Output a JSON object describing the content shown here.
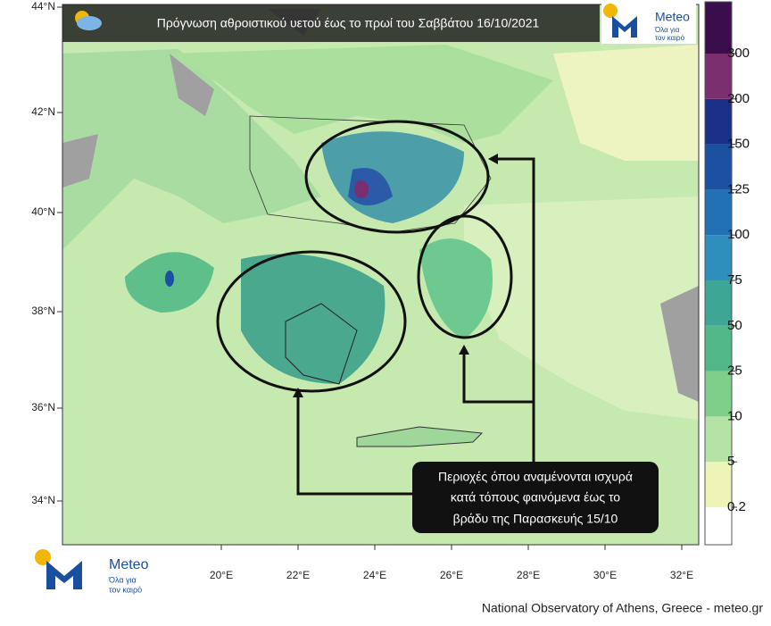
{
  "header": {
    "title": "Πρόγνωση αθροιστικού υετού έως το πρωί του Σαββάτου 16/10/2021"
  },
  "logo": {
    "name": "Meteo",
    "tagline": [
      "Όλα για",
      "τον καιρό"
    ]
  },
  "map": {
    "lat_labels": [
      "44°N",
      "42°N",
      "40°N",
      "38°N",
      "36°N",
      "34°N"
    ],
    "lon_labels": [
      "20°E",
      "22°E",
      "24°E",
      "26°E",
      "28°E",
      "30°E",
      "32°E"
    ]
  },
  "colorbar": {
    "levels": [
      0.2,
      5,
      10,
      25,
      50,
      75,
      100,
      125,
      150,
      200,
      300
    ],
    "colors": [
      "#ffffff",
      "#eef3b8",
      "#b5e3a6",
      "#7fcf8a",
      "#52b88a",
      "#3ea695",
      "#2e8fbd",
      "#2271b4",
      "#1c51a1",
      "#1a2f86",
      "#7c2f6f",
      "#3a0d4d"
    ]
  },
  "annotation": {
    "lines": [
      "Περιοχές όπου αναμένονται ισχυρά",
      "κατά τόπους φαινόμενα έως το",
      "βράδυ της Παρασκευής 15/10"
    ]
  },
  "footer": {
    "credit": "National Observatory of Athens, Greece - meteo.gr"
  }
}
